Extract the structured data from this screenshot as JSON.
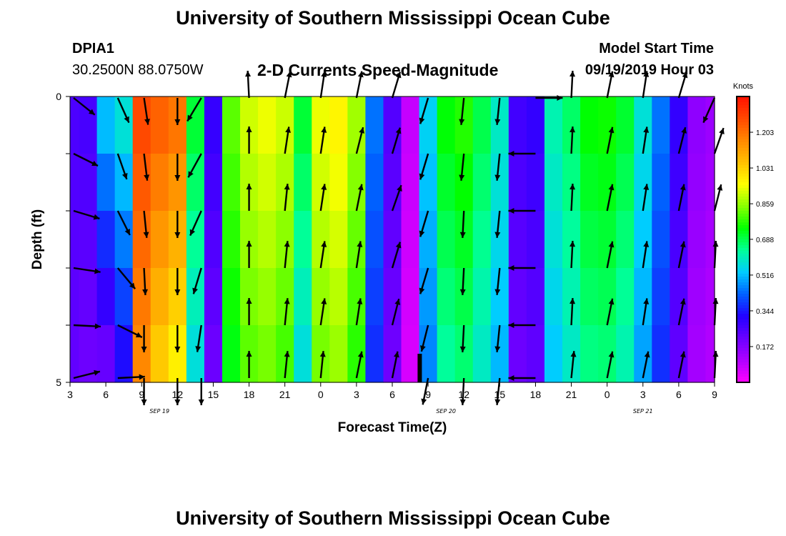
{
  "header": {
    "title_top": "University of Southern Mississippi Ocean Cube",
    "title_bottom": "University of Southern Mississippi Ocean Cube",
    "station_id": "DPIA1",
    "station_coords": "30.2500N 88.0750W",
    "subtitle": "2-D Currents Speed-Magnitude",
    "model_start_label": "Model Start Time",
    "model_start_value": "09/19/2019 Hour 03"
  },
  "chart_data": {
    "type": "heatmap",
    "title": "2-D Currents Speed-Magnitude",
    "xlabel": "Forecast Time(Z)",
    "ylabel": "Depth (ft)",
    "ylim": [
      0,
      5
    ],
    "y_ticks": [
      "0",
      "5"
    ],
    "x_ticks": [
      "3",
      "6",
      "9",
      "12",
      "15",
      "18",
      "21",
      "0",
      "3",
      "6",
      "9",
      "12",
      "15",
      "18",
      "21",
      "0",
      "3",
      "6",
      "9"
    ],
    "date_labels": [
      {
        "text": "SEP 19",
        "tick_index": 2.5
      },
      {
        "text": "SEP 20",
        "tick_index": 10.5
      },
      {
        "text": "SEP 21",
        "tick_index": 16.0
      }
    ],
    "colorbar": {
      "title": "Knots",
      "ticks": [
        "1.203",
        "1.031",
        "0.859",
        "0.688",
        "0.516",
        "0.344",
        "0.172"
      ],
      "tick_values": [
        1.203,
        1.031,
        0.859,
        0.688,
        0.516,
        0.344,
        0.172
      ],
      "min": 0.0,
      "max": 1.375,
      "colors": [
        "#ff00ff",
        "#b000ff",
        "#6a00ff",
        "#2200ff",
        "#0060ff",
        "#00ccff",
        "#00ff99",
        "#00ff00",
        "#88ff00",
        "#ffff00",
        "#ffc000",
        "#ff8800",
        "#ff4800",
        "#ff1000"
      ]
    },
    "time_hours": [
      3,
      4.5,
      6,
      7.5,
      9,
      10.5,
      12,
      13.5,
      15,
      16.5,
      18,
      19.5,
      21,
      22.5,
      24,
      25.5,
      27,
      28.5,
      30,
      31.5,
      33,
      34.5,
      36,
      37.5,
      39,
      40.5,
      42,
      43.5,
      45,
      46.5,
      48,
      49.5,
      51,
      52.5,
      54,
      55.5,
      57
    ],
    "speed_surface": [
      0.26,
      0.27,
      0.55,
      0.6,
      1.28,
      1.25,
      1.22,
      0.72,
      0.3,
      0.82,
      0.92,
      0.95,
      0.92,
      0.72,
      0.95,
      0.98,
      0.88,
      0.45,
      0.25,
      0.08,
      0.55,
      0.75,
      0.78,
      0.7,
      0.6,
      0.28,
      0.3,
      0.62,
      0.68,
      0.75,
      0.76,
      0.72,
      0.58,
      0.45,
      0.3,
      0.16,
      0.14
    ],
    "speed_bottom": [
      0.22,
      0.2,
      0.18,
      0.3,
      1.15,
      1.02,
      0.95,
      0.55,
      0.2,
      0.72,
      0.8,
      0.82,
      0.78,
      0.55,
      0.82,
      0.85,
      0.76,
      0.36,
      0.2,
      0.05,
      0.45,
      0.62,
      0.65,
      0.58,
      0.5,
      0.2,
      0.22,
      0.52,
      0.58,
      0.64,
      0.65,
      0.6,
      0.48,
      0.36,
      0.22,
      0.12,
      0.1
    ],
    "vectors": [
      {
        "t": 3.3,
        "dir": [
          [
            1,
            0.8
          ],
          [
            1,
            0.5
          ],
          [
            1,
            0.3
          ],
          [
            1,
            0.15
          ],
          [
            1,
            0.05
          ],
          [
            1,
            -0.25
          ]
        ]
      },
      {
        "t": 7.0,
        "dir": [
          [
            0.45,
            1
          ],
          [
            0.35,
            1
          ],
          [
            0.5,
            1
          ],
          [
            0.75,
            0.9
          ],
          [
            1,
            0.5
          ],
          [
            1,
            -0.05
          ]
        ]
      },
      {
        "t": 9.2,
        "dir": [
          [
            0.15,
            1
          ],
          [
            0.12,
            1
          ],
          [
            0.1,
            1
          ],
          [
            0.05,
            1
          ],
          [
            0,
            1
          ],
          [
            0,
            1
          ]
        ]
      },
      {
        "t": 12.0,
        "dir": [
          [
            0,
            1
          ],
          [
            0,
            1
          ],
          [
            0,
            1
          ],
          [
            0,
            1
          ],
          [
            0,
            1
          ],
          [
            0,
            1
          ]
        ]
      },
      {
        "t": 14.0,
        "dir": [
          [
            -0.6,
            1
          ],
          [
            -0.55,
            1
          ],
          [
            -0.45,
            1
          ],
          [
            -0.3,
            1
          ],
          [
            -0.15,
            1
          ],
          [
            0,
            1
          ]
        ]
      },
      {
        "t": 18.0,
        "dir": [
          [
            -0.05,
            -1
          ],
          [
            0,
            -1
          ],
          [
            0,
            -1
          ],
          [
            0,
            -1
          ],
          [
            0,
            -1
          ],
          [
            0,
            -1
          ]
        ]
      },
      {
        "t": 21.0,
        "dir": [
          [
            0.2,
            -1
          ],
          [
            0.15,
            -1
          ],
          [
            0.1,
            -1
          ],
          [
            0.1,
            -1
          ],
          [
            0.1,
            -1
          ],
          [
            0.1,
            -1
          ]
        ]
      },
      {
        "t": 24.0,
        "dir": [
          [
            0.15,
            -1
          ],
          [
            0.15,
            -1
          ],
          [
            0.15,
            -1
          ],
          [
            0.15,
            -1
          ],
          [
            0.15,
            -1
          ],
          [
            0.1,
            -1
          ]
        ]
      },
      {
        "t": 27.0,
        "dir": [
          [
            0.2,
            -1
          ],
          [
            0.25,
            -1
          ],
          [
            0.2,
            -1
          ],
          [
            0.15,
            -1
          ],
          [
            0.15,
            -1
          ],
          [
            0.2,
            -1
          ]
        ]
      },
      {
        "t": 30.0,
        "dir": [
          [
            0.3,
            -1
          ],
          [
            0.3,
            -1
          ],
          [
            0.35,
            -1
          ],
          [
            0.3,
            -1
          ],
          [
            0.25,
            -1
          ],
          [
            0.2,
            -1
          ]
        ]
      },
      {
        "t": 33.0,
        "dir": [
          [
            -0.3,
            1
          ],
          [
            -0.3,
            1
          ],
          [
            -0.3,
            1
          ],
          [
            -0.3,
            1
          ],
          [
            -0.25,
            1
          ],
          [
            -0.2,
            1
          ]
        ]
      },
      {
        "t": 36.0,
        "dir": [
          [
            -0.1,
            1
          ],
          [
            -0.1,
            1
          ],
          [
            -0.05,
            1
          ],
          [
            -0.05,
            1
          ],
          [
            -0.05,
            1
          ],
          [
            -0.05,
            1
          ]
        ]
      },
      {
        "t": 39.0,
        "dir": [
          [
            -0.1,
            1
          ],
          [
            -0.1,
            1
          ],
          [
            -0.1,
            1
          ],
          [
            -0.1,
            1
          ],
          [
            -0.1,
            1
          ],
          [
            -0.1,
            1
          ]
        ]
      },
      {
        "t": 42.0,
        "dir": [
          [
            1,
            0
          ],
          [
            -1,
            0
          ],
          [
            -1,
            0
          ],
          [
            -1,
            0
          ],
          [
            -1,
            0
          ],
          [
            -1,
            0
          ]
        ]
      },
      {
        "t": 45.0,
        "dir": [
          [
            0.05,
            -1
          ],
          [
            0.05,
            -1
          ],
          [
            0.05,
            -1
          ],
          [
            0.05,
            -1
          ],
          [
            0.05,
            -1
          ],
          [
            0.1,
            -1
          ]
        ]
      },
      {
        "t": 48.0,
        "dir": [
          [
            0.2,
            -1
          ],
          [
            0.2,
            -1
          ],
          [
            0.2,
            -1
          ],
          [
            0.2,
            -1
          ],
          [
            0.2,
            -1
          ],
          [
            0.2,
            -1
          ]
        ]
      },
      {
        "t": 51.0,
        "dir": [
          [
            0.15,
            -1
          ],
          [
            0.15,
            -1
          ],
          [
            0.15,
            -1
          ],
          [
            0.15,
            -1
          ],
          [
            0.15,
            -1
          ],
          [
            0.2,
            -1
          ]
        ]
      },
      {
        "t": 54.0,
        "dir": [
          [
            0.3,
            -1
          ],
          [
            0.25,
            -1
          ],
          [
            0.2,
            -1
          ],
          [
            0.2,
            -1
          ],
          [
            0.2,
            -1
          ],
          [
            0.2,
            -1
          ]
        ]
      },
      {
        "t": 57.0,
        "dir": [
          [
            -0.45,
            1
          ],
          [
            0.35,
            -1
          ],
          [
            0.25,
            -1
          ],
          [
            0.05,
            -1
          ],
          [
            0.05,
            -1
          ],
          [
            0.05,
            -1
          ]
        ]
      }
    ],
    "marker_time": 32.3
  }
}
